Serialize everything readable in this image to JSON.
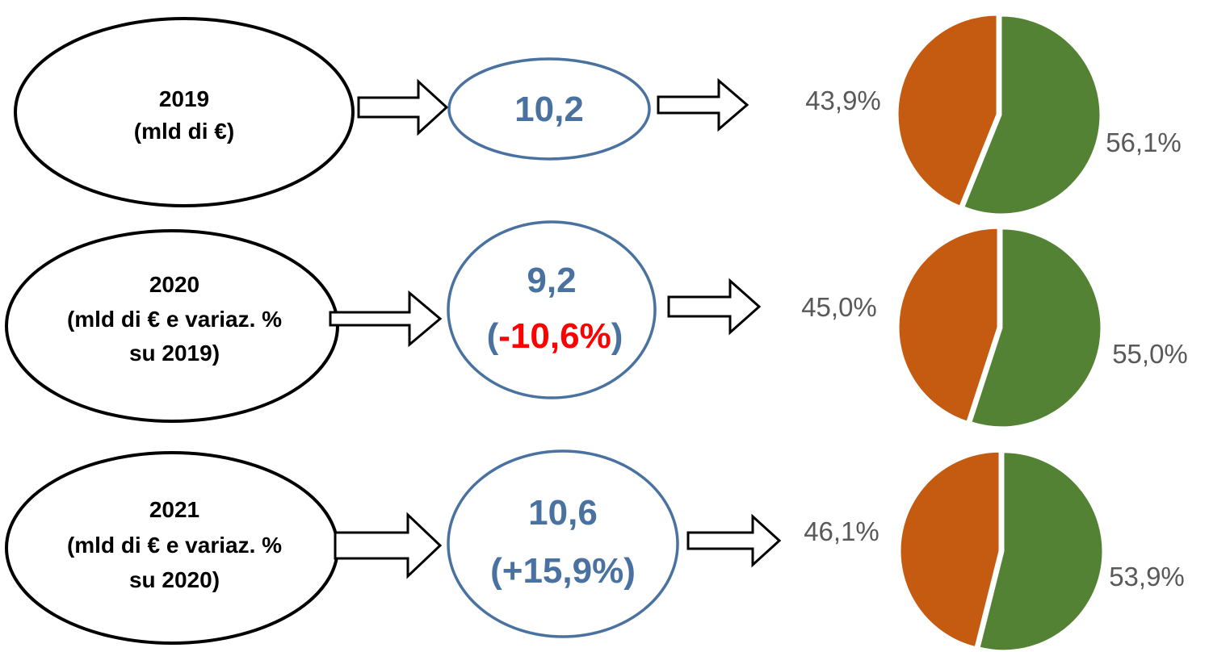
{
  "colors": {
    "segment_a": "#c55a11",
    "segment_b": "#548235",
    "value_text": "#4a72a0",
    "negative_change": "#ff0000",
    "value_ellipse_border": "#4a72a0"
  },
  "rows": [
    {
      "label_lines": [
        "2019",
        "(mld di €)"
      ],
      "value": "10,2",
      "change_parts": []
    },
    {
      "label_lines": [
        "2020",
        "(mld di € e variaz. %",
        "su 2019)"
      ],
      "value": "9,2",
      "change_parts": [
        "(",
        "-10,6%",
        ")"
      ]
    },
    {
      "label_lines": [
        "2021",
        "(mld di € e variaz. %",
        "su 2020)"
      ],
      "value": "10,6",
      "change_parts": [
        "(+15,9%)"
      ]
    }
  ],
  "chart_data": [
    {
      "type": "pie",
      "year": "2019",
      "values": [
        43.9,
        56.1
      ],
      "labels": [
        "43,9%",
        "56,1%"
      ]
    },
    {
      "type": "pie",
      "year": "2020",
      "values": [
        45.0,
        55.0
      ],
      "labels": [
        "45,0%",
        "55,0%"
      ]
    },
    {
      "type": "pie",
      "year": "2021",
      "values": [
        46.1,
        53.9
      ],
      "labels": [
        "46,1%",
        "53,9%"
      ]
    }
  ]
}
